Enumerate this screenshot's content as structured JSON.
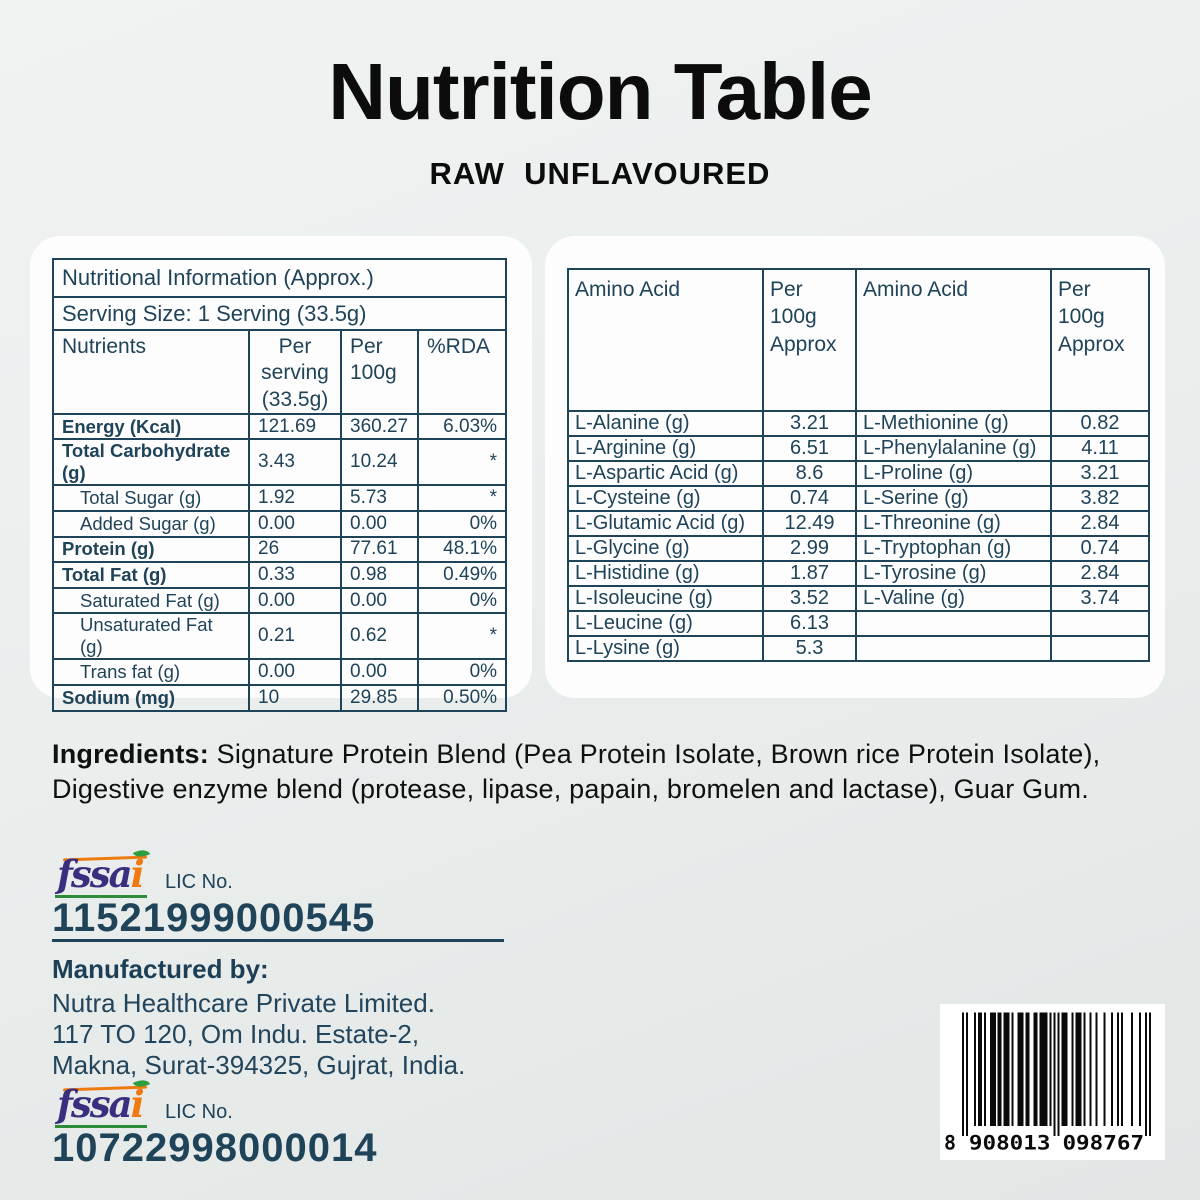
{
  "page": {
    "title": "Nutrition Table",
    "subtitle": "RAW  UNFLAVOURED"
  },
  "colors": {
    "navy": "#1f4358",
    "fssai_purple": "#38307e",
    "fssai_orange": "#ef7b10",
    "fssai_green": "#2e8b3a",
    "black": "#0c0c0c",
    "card_white": "#fdfdfd"
  },
  "nutrition_table": {
    "header": "Nutritional Information (Approx.)",
    "serving_size": "Serving Size: 1 Serving (33.5g)",
    "columns": [
      "Nutrients",
      "Per serving (33.5g)",
      "Per 100g",
      "%RDA"
    ],
    "rows": [
      {
        "label": "Energy (Kcal)",
        "bold": true,
        "indent": false,
        "per_serving": "121.69",
        "per_100g": "360.27",
        "rda": "6.03%"
      },
      {
        "label": "Total Carbohydrate (g)",
        "bold": true,
        "indent": false,
        "per_serving": "3.43",
        "per_100g": "10.24",
        "rda": "*"
      },
      {
        "label": "Total Sugar (g)",
        "bold": false,
        "indent": true,
        "per_serving": "1.92",
        "per_100g": "5.73",
        "rda": "*"
      },
      {
        "label": "Added Sugar (g)",
        "bold": false,
        "indent": true,
        "per_serving": "0.00",
        "per_100g": "0.00",
        "rda": "0%"
      },
      {
        "label": "Protein (g)",
        "bold": true,
        "indent": false,
        "per_serving": "26",
        "per_100g": "77.61",
        "rda": "48.1%"
      },
      {
        "label": "Total Fat (g)",
        "bold": true,
        "indent": false,
        "per_serving": "0.33",
        "per_100g": "0.98",
        "rda": "0.49%"
      },
      {
        "label": "Saturated Fat (g)",
        "bold": false,
        "indent": true,
        "per_serving": "0.00",
        "per_100g": "0.00",
        "rda": "0%"
      },
      {
        "label": "Unsaturated Fat (g)",
        "bold": false,
        "indent": true,
        "per_serving": "0.21",
        "per_100g": "0.62",
        "rda": "*"
      },
      {
        "label": "Trans fat (g)",
        "bold": false,
        "indent": true,
        "per_serving": "0.00",
        "per_100g": "0.00",
        "rda": "0%"
      },
      {
        "label": "Sodium (mg)",
        "bold": true,
        "indent": false,
        "per_serving": "10",
        "per_100g": "29.85",
        "rda": "0.50%"
      }
    ]
  },
  "amino_table": {
    "columns": [
      "Amino Acid",
      "Per 100g\nApprox",
      "Amino Acid",
      "Per 100g\nApprox"
    ],
    "rows": [
      [
        "L-Alanine (g)",
        "3.21",
        "L-Methionine (g)",
        "0.82"
      ],
      [
        "L-Arginine (g)",
        "6.51",
        "L-Phenylalanine (g)",
        "4.11"
      ],
      [
        "L-Aspartic Acid (g)",
        "8.6",
        "L-Proline (g)",
        "3.21"
      ],
      [
        "L-Cysteine (g)",
        "0.74",
        "L-Serine (g)",
        "3.82"
      ],
      [
        "L-Glutamic Acid (g)",
        "12.49",
        "L-Threonine (g)",
        "2.84"
      ],
      [
        "L-Glycine (g)",
        "2.99",
        "L-Tryptophan (g)",
        "0.74"
      ],
      [
        "L-Histidine (g)",
        "1.87",
        "L-Tyrosine (g)",
        "2.84"
      ],
      [
        "L-Isoleucine (g)",
        "3.52",
        "L-Valine (g)",
        "3.74"
      ],
      [
        "L-Leucine (g)",
        "6.13",
        "",
        ""
      ],
      [
        "L-Lysine (g)",
        "5.3",
        "",
        ""
      ]
    ]
  },
  "ingredients": {
    "label": "Ingredients:",
    "text": " Signature Protein Blend (Pea Protein Isolate, Brown rice Protein Isolate), Digestive enzyme blend (protease, lipase, papain, bromelen and lactase), Guar Gum."
  },
  "license1": {
    "logo_text": "fssa",
    "logo_i": "i",
    "label": "LIC No.",
    "number": "11521999000545"
  },
  "manufacturer": {
    "label": "Manufactured by:",
    "lines": [
      "Nutra Healthcare Private Limited.",
      "117 TO 120, Om Indu. Estate-2,",
      "Makna, Surat-394325, Gujrat, India."
    ]
  },
  "license2": {
    "logo_text": "fssa",
    "logo_i": "i",
    "label": "LIC No.",
    "number": "10722998000014"
  },
  "barcode": {
    "digits": "8908013098767",
    "display_first": "8",
    "display_group1": "908013",
    "display_group2": "098767"
  }
}
